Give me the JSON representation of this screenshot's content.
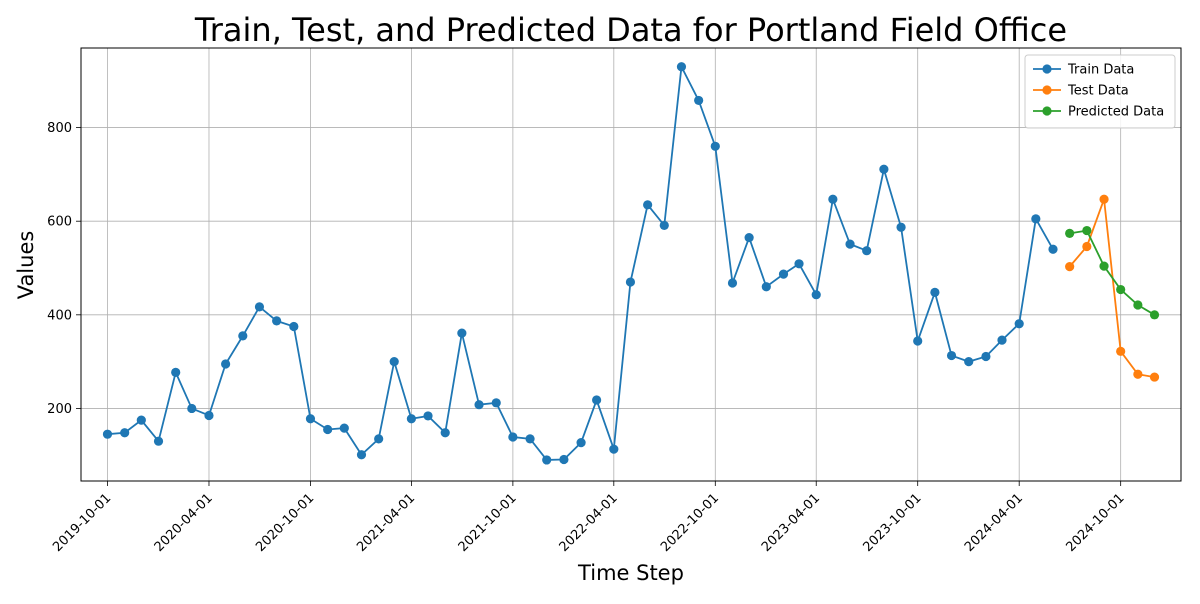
{
  "chart_data": {
    "type": "line",
    "title": "Train, Test, and Predicted Data for Portland Field Office",
    "xlabel": "Time Step",
    "ylabel": "Values",
    "x_tick_labels": [
      "2019-10-01",
      "2020-04-01",
      "2020-10-01",
      "2021-04-01",
      "2021-10-01",
      "2022-04-01",
      "2022-10-01",
      "2023-04-01",
      "2023-10-01",
      "2024-04-01",
      "2024-10-01"
    ],
    "y_ticks": [
      200,
      400,
      600,
      800
    ],
    "ylim": [
      45,
      970
    ],
    "grid": true,
    "legend_position": "top-right",
    "series": [
      {
        "name": "Train Data",
        "color": "#1f77b4",
        "x": [
          "2019-10-01",
          "2019-11-01",
          "2019-12-01",
          "2020-01-01",
          "2020-02-01",
          "2020-03-01",
          "2020-04-01",
          "2020-05-01",
          "2020-06-01",
          "2020-07-01",
          "2020-08-01",
          "2020-09-01",
          "2020-10-01",
          "2020-11-01",
          "2020-12-01",
          "2021-01-01",
          "2021-02-01",
          "2021-03-01",
          "2021-04-01",
          "2021-05-01",
          "2021-06-01",
          "2021-07-01",
          "2021-08-01",
          "2021-09-01",
          "2021-10-01",
          "2021-11-01",
          "2021-12-01",
          "2022-01-01",
          "2022-02-01",
          "2022-03-01",
          "2022-04-01",
          "2022-05-01",
          "2022-06-01",
          "2022-07-01",
          "2022-08-01",
          "2022-09-01",
          "2022-10-01",
          "2022-11-01",
          "2022-12-01",
          "2023-01-01",
          "2023-02-01",
          "2023-03-01",
          "2023-04-01",
          "2023-05-01",
          "2023-06-01",
          "2023-07-01",
          "2023-08-01",
          "2023-09-01",
          "2023-10-01",
          "2023-11-01",
          "2023-12-01",
          "2024-01-01",
          "2024-02-01",
          "2024-03-01",
          "2024-04-01",
          "2024-05-01",
          "2024-06-01"
        ],
        "values": [
          145,
          148,
          175,
          130,
          277,
          200,
          185,
          295,
          355,
          417,
          387,
          375,
          178,
          155,
          158,
          101,
          135,
          300,
          178,
          184,
          148,
          361,
          208,
          212,
          139,
          135,
          90,
          91,
          127,
          218,
          113,
          470,
          635,
          591,
          930,
          858,
          760,
          468,
          565,
          460,
          487,
          509,
          443,
          647,
          551,
          537,
          711,
          587,
          344,
          448,
          313,
          300,
          311,
          346,
          381,
          605,
          540
        ]
      },
      {
        "name": "Test Data",
        "color": "#ff7f0e",
        "x": [
          "2024-07-01",
          "2024-08-01",
          "2024-09-01",
          "2024-10-01",
          "2024-11-01",
          "2024-12-01"
        ],
        "values": [
          503,
          546,
          647,
          322,
          273,
          267
        ]
      },
      {
        "name": "Predicted Data",
        "color": "#2ca02c",
        "x": [
          "2024-07-01",
          "2024-08-01",
          "2024-09-01",
          "2024-10-01",
          "2024-11-01",
          "2024-12-01"
        ],
        "values": [
          574,
          580,
          504,
          454,
          421,
          400
        ]
      }
    ]
  }
}
